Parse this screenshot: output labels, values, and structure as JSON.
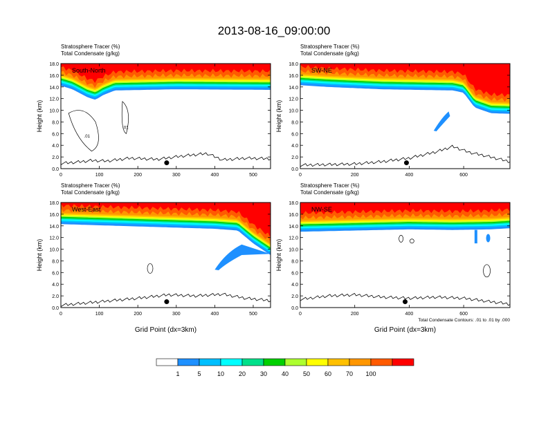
{
  "title": "2013-08-16_09:00:00",
  "colors": {
    "palette": [
      "#ffffff",
      "#1e90ff",
      "#00bfff",
      "#00ffff",
      "#00e08a",
      "#00d000",
      "#adff2f",
      "#ffff00",
      "#ffc000",
      "#ff9600",
      "#ff5a00",
      "#ff0000"
    ]
  },
  "chart_data": [
    {
      "type": "heatmap",
      "panel_label": "South-North",
      "header_line1": "Stratosphere Tracer   (%)",
      "header_line2": "Total Condensate   (g/kg)",
      "ylabel": "Height (km)",
      "xlabel": "",
      "xlim": [
        0,
        545
      ],
      "ylim": [
        0,
        18
      ],
      "x_ticks": [
        "0",
        "100",
        "200",
        "300",
        "400",
        "500"
      ],
      "x_tick_values": [
        0,
        100,
        200,
        300,
        400,
        500
      ],
      "y_ticks": [
        "0.0",
        "2.0",
        "4.0",
        "6.0",
        "8.0",
        "10.0",
        "12.0",
        "14.0",
        "16.0",
        "18.0"
      ],
      "tropopause_km": [
        [
          0,
          14.2
        ],
        [
          30,
          13.6
        ],
        [
          70,
          12.2
        ],
        [
          90,
          11.8
        ],
        [
          110,
          12.6
        ],
        [
          140,
          13.4
        ],
        [
          300,
          13.6
        ],
        [
          545,
          13.5
        ]
      ],
      "terrain_km": [
        [
          0,
          0.9
        ],
        [
          40,
          1.1
        ],
        [
          80,
          1.4
        ],
        [
          120,
          1.3
        ],
        [
          180,
          1.8
        ],
        [
          250,
          1.6
        ],
        [
          320,
          2.2
        ],
        [
          380,
          2.6
        ],
        [
          420,
          1.5
        ],
        [
          480,
          1.8
        ],
        [
          545,
          1.7
        ]
      ],
      "marker": {
        "x": 275,
        "y": 1.0
      },
      "contour_labels": [
        ".01",
        ".01"
      ]
    },
    {
      "type": "heatmap",
      "panel_label": "SW-NE",
      "header_line1": "Stratosphere Tracer   (%)",
      "header_line2": "Total Condensate   (g/kg)",
      "ylabel": "Height (km)",
      "xlabel": "",
      "xlim": [
        0,
        770
      ],
      "ylim": [
        0,
        18
      ],
      "x_ticks": [
        "0",
        "200",
        "400",
        "600"
      ],
      "x_tick_values": [
        0,
        200,
        400,
        600
      ],
      "y_ticks": [
        "0.0",
        "2.0",
        "4.0",
        "6.0",
        "8.0",
        "10.0",
        "12.0",
        "14.0",
        "16.0",
        "18.0"
      ],
      "tropopause_km": [
        [
          0,
          14.3
        ],
        [
          100,
          14.0
        ],
        [
          300,
          13.6
        ],
        [
          560,
          13.4
        ],
        [
          600,
          13.0
        ],
        [
          640,
          10.5
        ],
        [
          700,
          9.5
        ],
        [
          770,
          9.4
        ]
      ],
      "terrain_km": [
        [
          0,
          0.6
        ],
        [
          200,
          0.8
        ],
        [
          300,
          1.2
        ],
        [
          400,
          1.8
        ],
        [
          500,
          2.9
        ],
        [
          560,
          3.8
        ],
        [
          620,
          2.8
        ],
        [
          680,
          2.2
        ],
        [
          770,
          1.2
        ]
      ],
      "marker": {
        "x": 390,
        "y": 1.0
      },
      "contour_labels": []
    },
    {
      "type": "heatmap",
      "panel_label": "West-East",
      "header_line1": "Stratosphere Tracer   (%)",
      "header_line2": "Total Condensate   (g/kg)",
      "ylabel": "Height (km)",
      "xlabel": "Grid Point (dx=3km)",
      "xlim": [
        0,
        545
      ],
      "ylim": [
        0,
        18
      ],
      "x_ticks": [
        "0",
        "100",
        "200",
        "300",
        "400",
        "500"
      ],
      "x_tick_values": [
        0,
        100,
        200,
        300,
        400,
        500
      ],
      "y_ticks": [
        "0.0",
        "2.0",
        "4.0",
        "6.0",
        "8.0",
        "10.0",
        "12.0",
        "14.0",
        "16.0",
        "18.0"
      ],
      "tropopause_km": [
        [
          0,
          14.3
        ],
        [
          200,
          13.9
        ],
        [
          400,
          13.5
        ],
        [
          460,
          13.2
        ],
        [
          500,
          11.0
        ],
        [
          545,
          9.0
        ]
      ],
      "terrain_km": [
        [
          0,
          0.4
        ],
        [
          100,
          1.0
        ],
        [
          200,
          1.6
        ],
        [
          280,
          2.2
        ],
        [
          350,
          2.0
        ],
        [
          420,
          2.3
        ],
        [
          480,
          1.6
        ],
        [
          545,
          1.2
        ]
      ],
      "marker": {
        "x": 275,
        "y": 1.0
      },
      "contour_labels": []
    },
    {
      "type": "heatmap",
      "panel_label": "NW-SE",
      "header_line1": "Stratosphere Tracer   (%)",
      "header_line2": "Total Condensate   (g/kg)",
      "ylabel": "Height (km)",
      "xlabel": "Grid Point (dx=3km)",
      "footnote": "Total Condensate Contours: .01 to .01 by .000",
      "xlim": [
        0,
        770
      ],
      "ylim": [
        0,
        18
      ],
      "x_ticks": [
        "0",
        "200",
        "400",
        "600"
      ],
      "x_tick_values": [
        0,
        200,
        400,
        600
      ],
      "y_ticks": [
        "0.0",
        "2.0",
        "4.0",
        "6.0",
        "8.0",
        "10.0",
        "12.0",
        "14.0",
        "16.0",
        "18.0"
      ],
      "tropopause_km": [
        [
          0,
          13.0
        ],
        [
          200,
          13.2
        ],
        [
          400,
          13.4
        ],
        [
          560,
          13.3
        ],
        [
          700,
          13.4
        ],
        [
          770,
          13.6
        ]
      ],
      "terrain_km": [
        [
          0,
          1.4
        ],
        [
          100,
          2.0
        ],
        [
          200,
          2.2
        ],
        [
          300,
          1.8
        ],
        [
          400,
          1.6
        ],
        [
          500,
          1.8
        ],
        [
          600,
          1.6
        ],
        [
          700,
          1.0
        ],
        [
          770,
          0.6
        ]
      ],
      "marker": {
        "x": 385,
        "y": 1.0
      },
      "contour_labels": []
    }
  ],
  "colorbar": {
    "labels": [
      "1",
      "5",
      "10",
      "20",
      "30",
      "40",
      "50",
      "60",
      "70",
      "100"
    ]
  }
}
